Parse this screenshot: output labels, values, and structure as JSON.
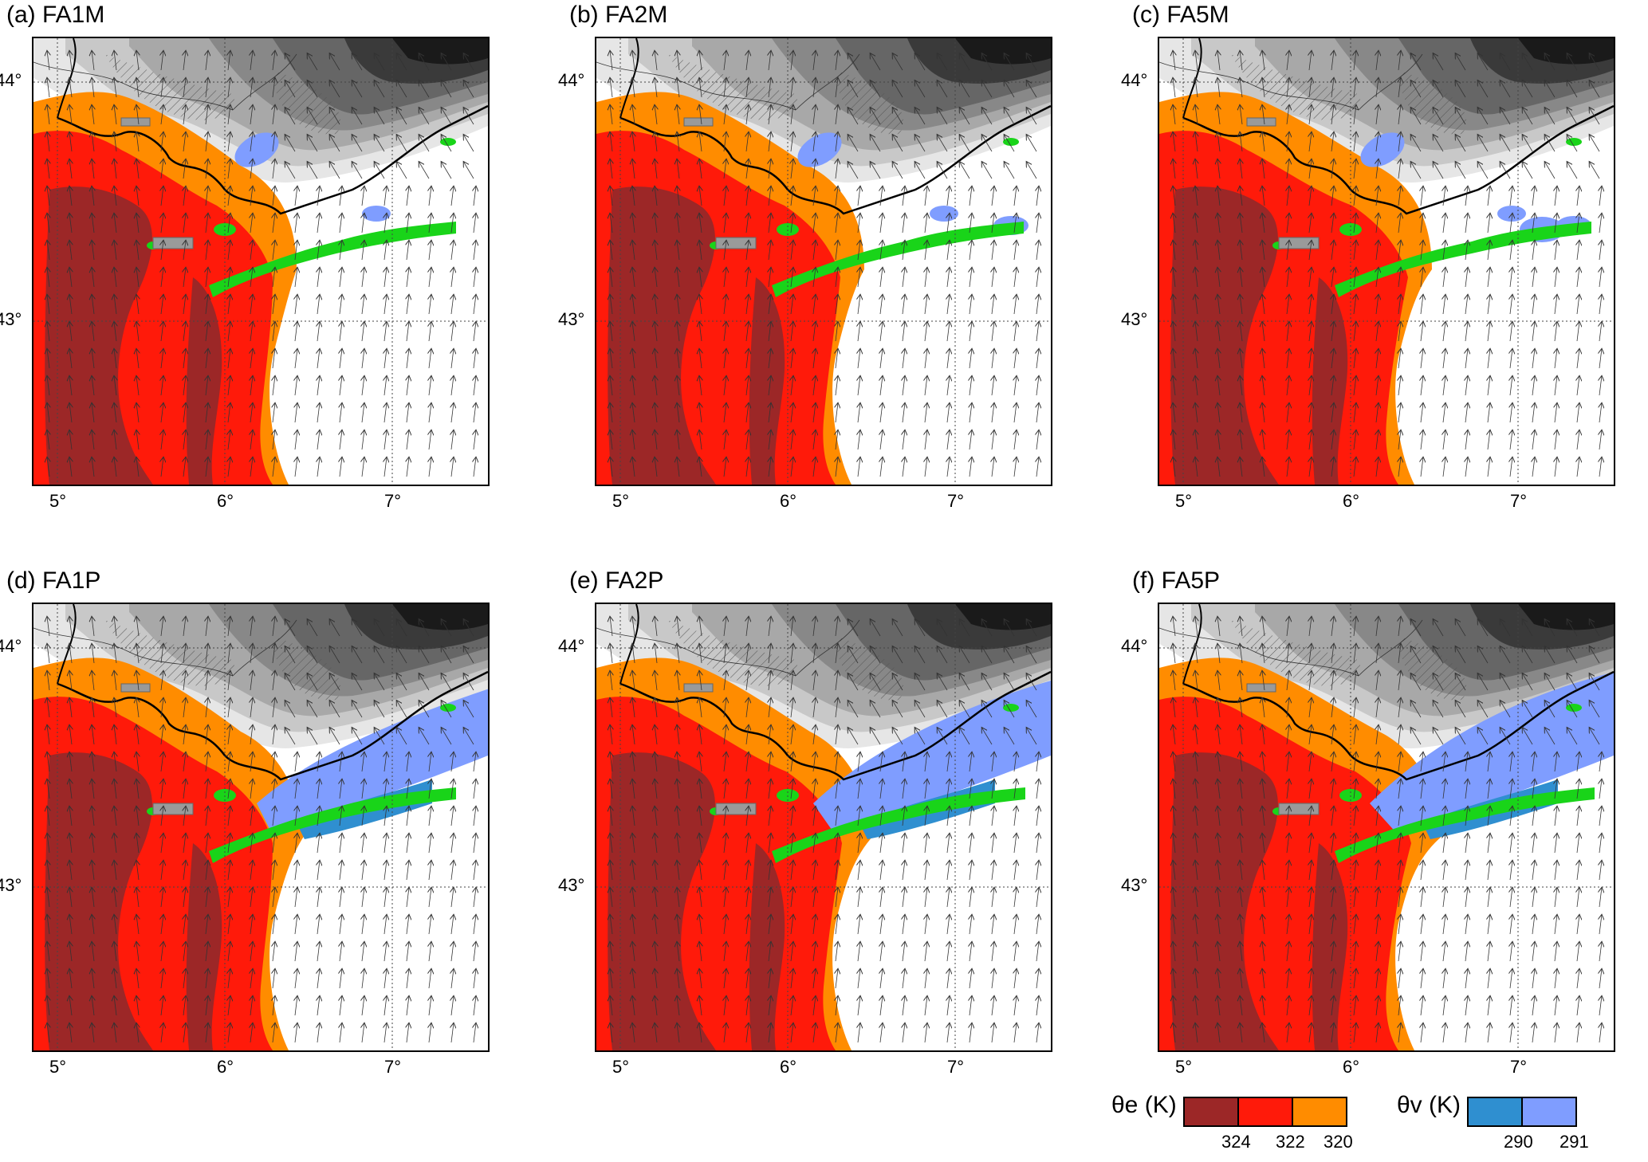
{
  "panels": [
    {
      "title": "(a) FA1M",
      "variant": "M",
      "shift": 0,
      "bluePatches": 2
    },
    {
      "title": "(b) FA2M",
      "variant": "M",
      "shift": 6,
      "bluePatches": 3
    },
    {
      "title": "(c) FA5M",
      "variant": "M",
      "shift": 12,
      "bluePatches": 4
    },
    {
      "title": "(d) FA1P",
      "variant": "P",
      "shift": 0,
      "bluePatches": 5
    },
    {
      "title": "(e) FA2P",
      "variant": "P",
      "shift": 8,
      "bluePatches": 6
    },
    {
      "title": "(f) FA5P",
      "variant": "P",
      "shift": 16,
      "bluePatches": 7
    }
  ],
  "axes": {
    "lat_labels": [
      "44°",
      "43°"
    ],
    "lon_labels": [
      "5°",
      "6°",
      "7°"
    ]
  },
  "colors": {
    "theta_e_324": "#9c2727",
    "theta_e_322": "#ff1a0a",
    "theta_e_320": "#ff8c00",
    "theta_v_290": "#2f8fd0",
    "theta_v_291": "#7f9dff",
    "green": "#19d419",
    "terrain": [
      "#e6e6e6",
      "#c8c8c8",
      "#a8a8a8",
      "#888888",
      "#666666",
      "#3a3a3a",
      "#1a1a1a"
    ]
  },
  "legend": {
    "theta_e": {
      "label": "θe (K)",
      "ticks": [
        "324",
        "322",
        "320"
      ]
    },
    "theta_v": {
      "label": "θv (K)",
      "ticks": [
        "290",
        "291"
      ]
    }
  }
}
